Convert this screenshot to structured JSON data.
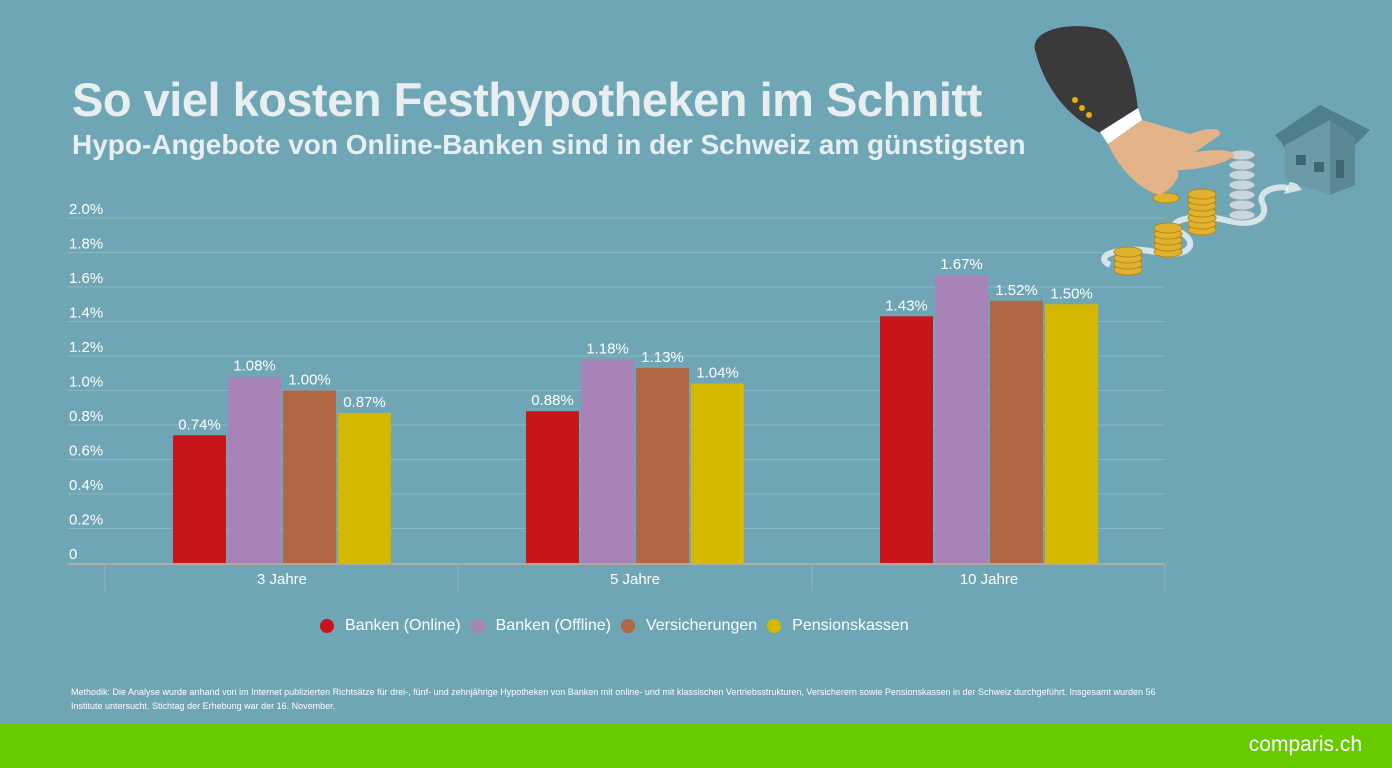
{
  "header": {
    "title": "So viel kosten Festhypotheken im Schnitt",
    "subtitle": "Hypo-Angebote von Online-Banken sind in der Schweiz am günstigsten"
  },
  "chart_data": {
    "type": "bar",
    "title": "So viel kosten Festhypotheken im Schnitt",
    "subtitle": "Hypo-Angebote von Online-Banken sind in der Schweiz am günstigsten",
    "categories": [
      "3 Jahre",
      "5 Jahre",
      "10 Jahre"
    ],
    "series": [
      {
        "name": "Banken (Online)",
        "color": "#c8141a",
        "values": [
          0.74,
          0.88,
          1.43
        ],
        "labels": [
          "0.74%",
          "0.88%",
          "1.43%"
        ]
      },
      {
        "name": "Banken (Offline)",
        "color": "#a783b8",
        "values": [
          1.08,
          1.18,
          1.67
        ],
        "labels": [
          "1.08%",
          "1.18%",
          "1.67%"
        ]
      },
      {
        "name": "Versicherungen",
        "color": "#b26745",
        "values": [
          1.0,
          1.13,
          1.52
        ],
        "labels": [
          "1.00%",
          "1.13%",
          "1.52%"
        ]
      },
      {
        "name": "Pensionskassen",
        "color": "#d4b800",
        "values": [
          0.87,
          1.04,
          1.5
        ],
        "labels": [
          "0.87%",
          "1.04%",
          "1.50%"
        ]
      }
    ],
    "yticks": [
      "0",
      "0.2%",
      "0.4%",
      "0.6%",
      "0.8%",
      "1.0%",
      "1.2%",
      "1.4%",
      "1.6%",
      "1.8%",
      "2.0%"
    ],
    "ylim": [
      0,
      2.0
    ],
    "grid": true,
    "legend": "bottom"
  },
  "footnote": "Methodik: Die Analyse wurde anhand von im Internet publizierten Richtsätze für drei-, fünf- und zehnjährige Hypotheken von Banken mit online- und mit klassischen Vertriebsstrukturen, Versicherern sowie Pensionskassen in der Schweiz durchgeführt. Insgesamt wurden 56 Institute untersucht. Stichtag der Erhebung war der 16. November.",
  "brand": "comparis.ch",
  "colors": {
    "background": "#6fa6b6",
    "footer": "#66cc00"
  }
}
